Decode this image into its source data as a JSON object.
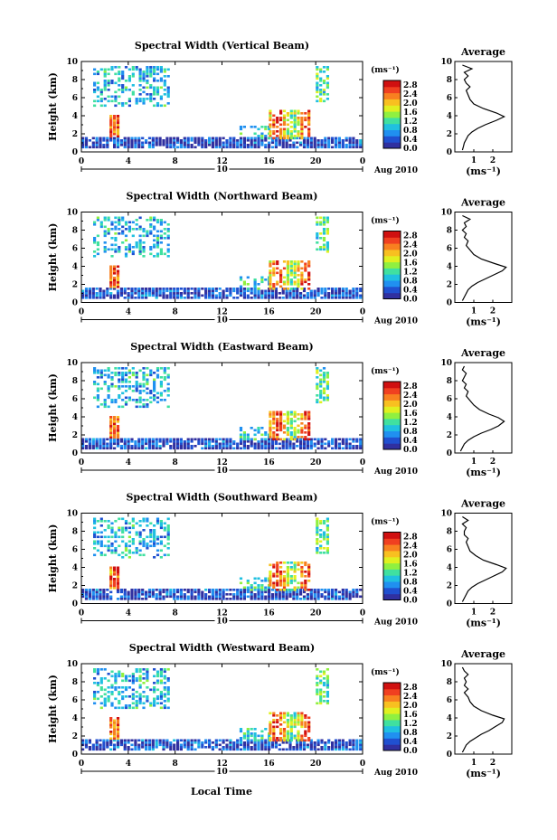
{
  "xlabel": "Local Time",
  "date_label": "Aug 2010",
  "day_label": "10",
  "unit_label": "(ms⁻¹)",
  "ylabel": "Height (km)",
  "avg_title": "Average",
  "colorbar": {
    "ticks": [
      "0.0",
      "0.4",
      "0.8",
      "1.2",
      "1.6",
      "2.0",
      "2.4",
      "2.8"
    ],
    "range": [
      0,
      3.0
    ],
    "colors": [
      "#3030a0",
      "#2050d0",
      "#2090f0",
      "#20c0e0",
      "#40e0a0",
      "#90f040",
      "#e0f020",
      "#f8c020",
      "#f88020",
      "#f04020",
      "#d01010"
    ]
  },
  "chart_data": [
    {
      "type": "heatmap",
      "title": "Spectral Width (Vertical Beam)",
      "xlim": [
        0,
        24
      ],
      "ylim": [
        0,
        10
      ],
      "xticks": [
        "0",
        "4",
        "8",
        "12",
        "16",
        "20",
        "0"
      ],
      "yticks": [
        "0",
        "2",
        "4",
        "6",
        "8",
        "10"
      ],
      "avg_xticks": [
        "1",
        "2"
      ],
      "avg_xlim": [
        0,
        3
      ],
      "avg_profile": [
        [
          0.4,
          0.2
        ],
        [
          0.45,
          0.6
        ],
        [
          0.5,
          1.0
        ],
        [
          0.6,
          1.4
        ],
        [
          0.7,
          1.8
        ],
        [
          0.9,
          2.2
        ],
        [
          1.2,
          2.6
        ],
        [
          1.6,
          3.0
        ],
        [
          2.2,
          3.5
        ],
        [
          2.6,
          3.9
        ],
        [
          2.2,
          4.3
        ],
        [
          1.5,
          4.8
        ],
        [
          1.0,
          5.3
        ],
        [
          0.8,
          5.8
        ],
        [
          0.7,
          6.3
        ],
        [
          0.6,
          6.8
        ],
        [
          0.8,
          7.2
        ],
        [
          0.6,
          7.6
        ],
        [
          0.5,
          8.0
        ],
        [
          0.7,
          8.4
        ],
        [
          0.5,
          8.8
        ],
        [
          0.9,
          9.2
        ],
        [
          0.4,
          9.6
        ]
      ]
    },
    {
      "type": "heatmap",
      "title": "Spectral Width (Northward Beam)",
      "xlim": [
        0,
        24
      ],
      "ylim": [
        0,
        10
      ],
      "xticks": [
        "0",
        "4",
        "8",
        "12",
        "16",
        "20",
        "0"
      ],
      "yticks": [
        "0",
        "2",
        "4",
        "6",
        "8",
        "10"
      ],
      "avg_xticks": [
        "1",
        "2"
      ],
      "avg_xlim": [
        0,
        3
      ],
      "avg_profile": [
        [
          0.4,
          0.2
        ],
        [
          0.5,
          0.6
        ],
        [
          0.6,
          1.0
        ],
        [
          0.7,
          1.4
        ],
        [
          0.9,
          1.8
        ],
        [
          1.2,
          2.2
        ],
        [
          1.6,
          2.6
        ],
        [
          2.0,
          3.0
        ],
        [
          2.5,
          3.5
        ],
        [
          2.7,
          3.9
        ],
        [
          2.1,
          4.3
        ],
        [
          1.4,
          4.8
        ],
        [
          1.0,
          5.3
        ],
        [
          0.8,
          5.8
        ],
        [
          0.6,
          6.3
        ],
        [
          0.7,
          6.8
        ],
        [
          0.5,
          7.2
        ],
        [
          0.6,
          7.6
        ],
        [
          0.4,
          8.0
        ],
        [
          0.6,
          8.4
        ],
        [
          0.5,
          8.8
        ],
        [
          0.8,
          9.2
        ],
        [
          0.4,
          9.6
        ]
      ]
    },
    {
      "type": "heatmap",
      "title": "Spectral Width (Eastward Beam)",
      "xlim": [
        0,
        24
      ],
      "ylim": [
        0,
        10
      ],
      "xticks": [
        "0",
        "4",
        "8",
        "12",
        "16",
        "20",
        "0"
      ],
      "yticks": [
        "0",
        "2",
        "4",
        "6",
        "8",
        "10"
      ],
      "avg_xticks": [
        "1",
        "2"
      ],
      "avg_xlim": [
        0,
        3
      ],
      "avg_profile": [
        [
          0.3,
          0.2
        ],
        [
          0.4,
          0.6
        ],
        [
          0.5,
          1.0
        ],
        [
          0.7,
          1.4
        ],
        [
          1.0,
          1.8
        ],
        [
          1.4,
          2.2
        ],
        [
          1.9,
          2.6
        ],
        [
          2.3,
          3.0
        ],
        [
          2.6,
          3.5
        ],
        [
          2.3,
          3.9
        ],
        [
          1.8,
          4.3
        ],
        [
          1.3,
          4.8
        ],
        [
          1.0,
          5.3
        ],
        [
          0.8,
          5.8
        ],
        [
          0.6,
          6.3
        ],
        [
          0.7,
          6.8
        ],
        [
          0.5,
          7.2
        ],
        [
          0.6,
          7.6
        ],
        [
          0.4,
          8.0
        ],
        [
          0.5,
          8.4
        ],
        [
          0.6,
          8.8
        ],
        [
          0.4,
          9.2
        ],
        [
          0.5,
          9.6
        ]
      ]
    },
    {
      "type": "heatmap",
      "title": "Spectral Width (Southward Beam)",
      "xlim": [
        0,
        24
      ],
      "ylim": [
        0,
        10
      ],
      "xticks": [
        "0",
        "4",
        "8",
        "12",
        "16",
        "20",
        "0"
      ],
      "yticks": [
        "0",
        "2",
        "4",
        "6",
        "8",
        "10"
      ],
      "avg_xticks": [
        "1",
        "2"
      ],
      "avg_xlim": [
        0,
        3
      ],
      "avg_profile": [
        [
          0.4,
          0.2
        ],
        [
          0.5,
          0.6
        ],
        [
          0.6,
          1.0
        ],
        [
          0.7,
          1.4
        ],
        [
          0.9,
          1.8
        ],
        [
          1.2,
          2.2
        ],
        [
          1.6,
          2.6
        ],
        [
          2.0,
          3.0
        ],
        [
          2.5,
          3.5
        ],
        [
          2.7,
          3.9
        ],
        [
          2.2,
          4.3
        ],
        [
          1.5,
          4.8
        ],
        [
          1.1,
          5.3
        ],
        [
          0.8,
          5.8
        ],
        [
          0.7,
          6.3
        ],
        [
          0.6,
          6.8
        ],
        [
          0.7,
          7.2
        ],
        [
          0.5,
          7.6
        ],
        [
          0.5,
          8.0
        ],
        [
          0.6,
          8.4
        ],
        [
          0.4,
          8.8
        ],
        [
          0.7,
          9.2
        ],
        [
          0.4,
          9.6
        ]
      ]
    },
    {
      "type": "heatmap",
      "title": "Spectral Width (Westward Beam)",
      "xlim": [
        0,
        24
      ],
      "ylim": [
        0,
        10
      ],
      "xticks": [
        "0",
        "4",
        "8",
        "12",
        "16",
        "20",
        "0"
      ],
      "yticks": [
        "0",
        "2",
        "4",
        "6",
        "8",
        "10"
      ],
      "avg_xticks": [
        "1",
        "2"
      ],
      "avg_xlim": [
        0,
        3
      ],
      "avg_profile": [
        [
          0.4,
          0.2
        ],
        [
          0.5,
          0.6
        ],
        [
          0.6,
          1.0
        ],
        [
          0.8,
          1.4
        ],
        [
          1.1,
          1.8
        ],
        [
          1.4,
          2.2
        ],
        [
          1.8,
          2.6
        ],
        [
          2.1,
          3.0
        ],
        [
          2.5,
          3.5
        ],
        [
          2.6,
          3.9
        ],
        [
          2.0,
          4.3
        ],
        [
          1.4,
          4.8
        ],
        [
          1.0,
          5.3
        ],
        [
          0.8,
          5.8
        ],
        [
          0.7,
          6.3
        ],
        [
          0.5,
          6.8
        ],
        [
          0.7,
          7.2
        ],
        [
          0.5,
          7.6
        ],
        [
          0.6,
          8.0
        ],
        [
          0.5,
          8.4
        ],
        [
          0.7,
          8.8
        ],
        [
          0.5,
          9.2
        ],
        [
          0.4,
          9.6
        ]
      ]
    }
  ]
}
